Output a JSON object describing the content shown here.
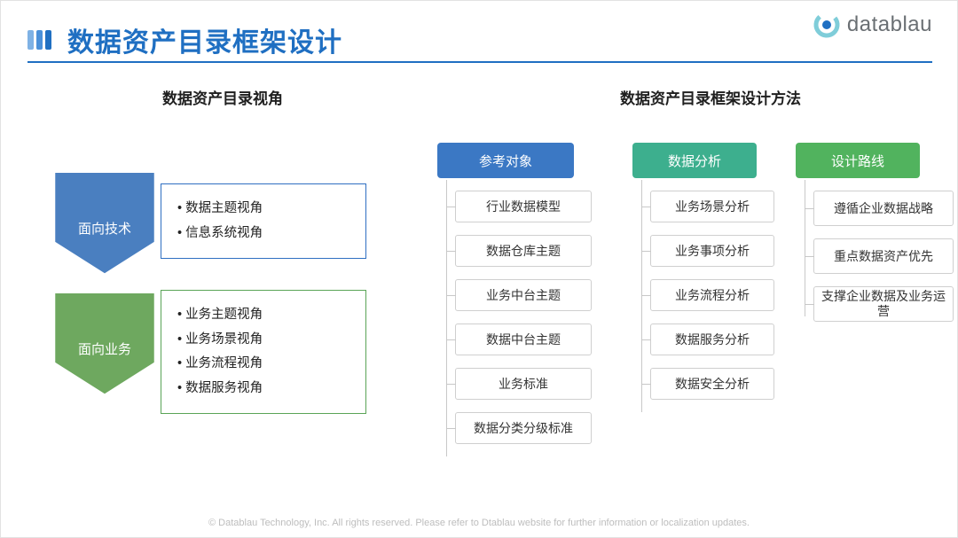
{
  "title": "数据资产目录框架设计",
  "title_color": "#1f6fc2",
  "title_bullet_colors": [
    "#7fb2e5",
    "#4a90d9",
    "#1f6fc2"
  ],
  "logo_text": "datablau",
  "logo_outer_color": "#7fcdd9",
  "logo_inner_color": "#1f6fc2",
  "section_left_heading": "数据资产目录视角",
  "section_right_heading": "数据资产目录框架设计方法",
  "chevrons": [
    {
      "label": "面向技术",
      "fill": "#4a7fc0",
      "card_border": "#2f6fc2",
      "bullets": [
        "数据主题视角",
        "信息系统视角"
      ]
    },
    {
      "label": "面向业务",
      "fill": "#6ea85f",
      "card_border": "#5aa457",
      "bullets": [
        "业务主题视角",
        "业务场景视角",
        "业务流程视角",
        "数据服务视角"
      ]
    }
  ],
  "right_columns": [
    {
      "header": "参考对象",
      "header_color": "#3b78c4",
      "items": [
        "行业数据模型",
        "数据仓库主题",
        "业务中台主题",
        "数据中台主题",
        "业务标准",
        "数据分类分级标准"
      ]
    },
    {
      "header": "数据分析",
      "header_color": "#3daf8e",
      "items": [
        "业务场景分析",
        "业务事项分析",
        "业务流程分析",
        "数据服务分析",
        "数据安全分析"
      ]
    },
    {
      "header": "设计路线",
      "header_color": "#51b35e",
      "items": [
        "遵循企业数据战略",
        "重点数据资产优先",
        "支撑企业数据及业务运营"
      ]
    }
  ],
  "footer": "© Datablau Technology, Inc. All rights reserved.  Please refer to Dtablau website for further information or localization updates."
}
